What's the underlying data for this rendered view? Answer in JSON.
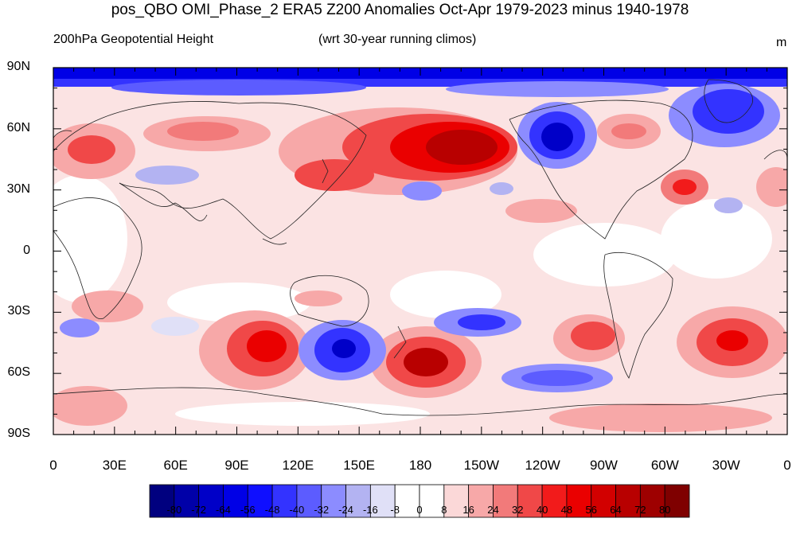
{
  "title": "pos_QBO OMI_Phase_2 ERA5 Z200 Anomalies Oct-Apr 1979-2023 minus 1940-1978",
  "subtitle_left": "200hPa Geopotential Height",
  "subtitle_center": "(wrt 30-year running climos)",
  "units": "m",
  "lat_labels": [
    "90N",
    "60N",
    "30N",
    "0",
    "30S",
    "60S",
    "90S"
  ],
  "lon_labels": [
    "0",
    "30E",
    "60E",
    "90E",
    "120E",
    "150E",
    "180",
    "150W",
    "120W",
    "90W",
    "60W",
    "30W",
    "0"
  ],
  "colorbar": {
    "levels": [
      "-80",
      "-72",
      "-64",
      "-56",
      "-48",
      "-40",
      "-32",
      "-24",
      "-16",
      "-8",
      "0",
      "8",
      "16",
      "24",
      "32",
      "40",
      "48",
      "56",
      "64",
      "72",
      "80"
    ],
    "colors": [
      "#00007f",
      "#0000a8",
      "#0000c8",
      "#0000e6",
      "#0f0fff",
      "#3333ff",
      "#5c5cff",
      "#8c8cff",
      "#b3b3f2",
      "#e0e0f7",
      "#ffffff",
      "#ffffff",
      "#fbd8d8",
      "#f7a8a8",
      "#f27a7a",
      "#f04848",
      "#f21b1b",
      "#ea0000",
      "#d20000",
      "#b80000",
      "#9e0000",
      "#7f0000"
    ]
  },
  "map": {
    "projection": "cylindrical-equidistant",
    "center_lon": 180,
    "land_outlines": true
  }
}
